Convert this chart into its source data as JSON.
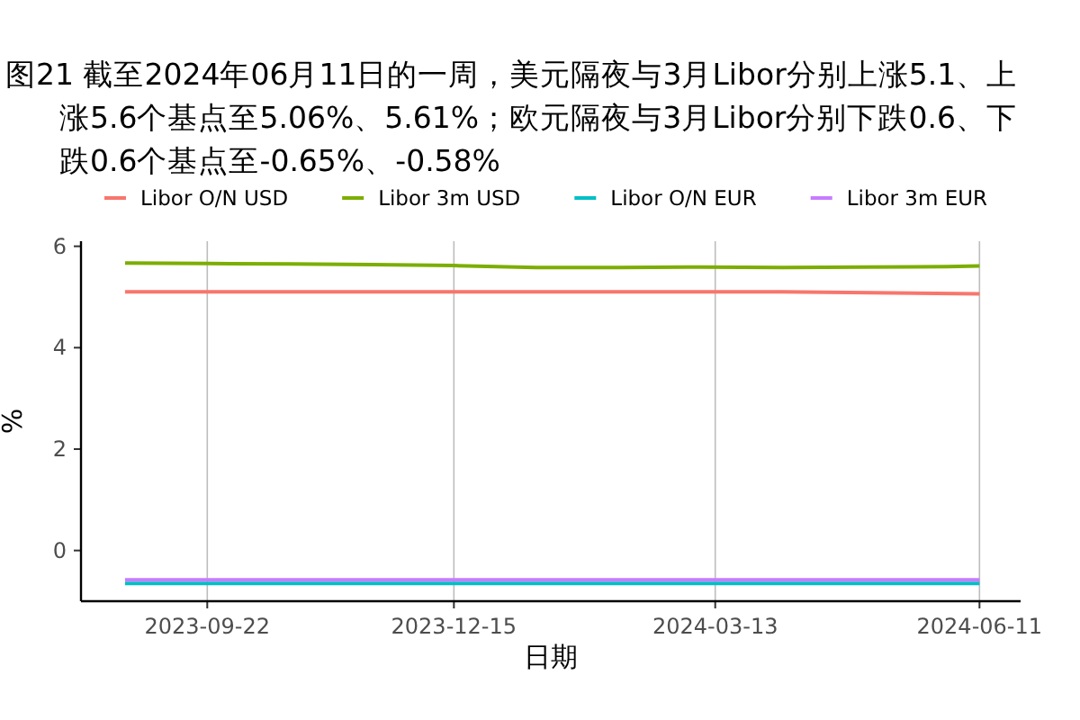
{
  "chart_data": {
    "type": "line",
    "title": "图21  截至2024年06月11日的一周，美元隔夜与3月Libor分别上涨5.1、上涨5.6个基点至5.06%、5.61%；欧元隔夜与3月Libor分别下跌0.6、下跌0.6个基点至-0.65%、-0.58%",
    "xlabel": "日期",
    "ylabel": "%",
    "series": [
      {
        "name": "Libor O/N USD",
        "color": "#f8766d",
        "x": [
          "2023-08-25",
          "2023-10-20",
          "2023-12-15",
          "2024-02-09",
          "2024-04-05",
          "2024-06-11"
        ],
        "values": [
          5.1,
          5.1,
          5.1,
          5.1,
          5.1,
          5.06
        ]
      },
      {
        "name": "Libor 3m USD",
        "color": "#7cae00",
        "x": [
          "2023-08-25",
          "2023-09-22",
          "2023-10-20",
          "2023-11-17",
          "2023-12-15",
          "2024-01-12",
          "2024-02-09",
          "2024-03-08",
          "2024-04-05",
          "2024-05-03",
          "2024-05-31",
          "2024-06-11"
        ],
        "values": [
          5.67,
          5.66,
          5.65,
          5.64,
          5.62,
          5.58,
          5.58,
          5.59,
          5.58,
          5.59,
          5.6,
          5.61
        ]
      },
      {
        "name": "Libor O/N EUR",
        "color": "#00bfc4",
        "x": [
          "2023-08-25",
          "2024-06-11"
        ],
        "values": [
          -0.65,
          -0.65
        ]
      },
      {
        "name": "Libor 3m EUR",
        "color": "#c77cff",
        "x": [
          "2023-08-25",
          "2024-06-11"
        ],
        "values": [
          -0.58,
          -0.58
        ]
      }
    ],
    "xlim": [
      "2023-08-10",
      "2024-06-25"
    ],
    "xticks": [
      "2023-09-22",
      "2023-12-15",
      "2024-03-13",
      "2024-06-11"
    ],
    "ylim": [
      -1,
      6.1
    ],
    "yticks": [
      0,
      2,
      4,
      6
    ],
    "grid": "x",
    "legend": "top"
  }
}
